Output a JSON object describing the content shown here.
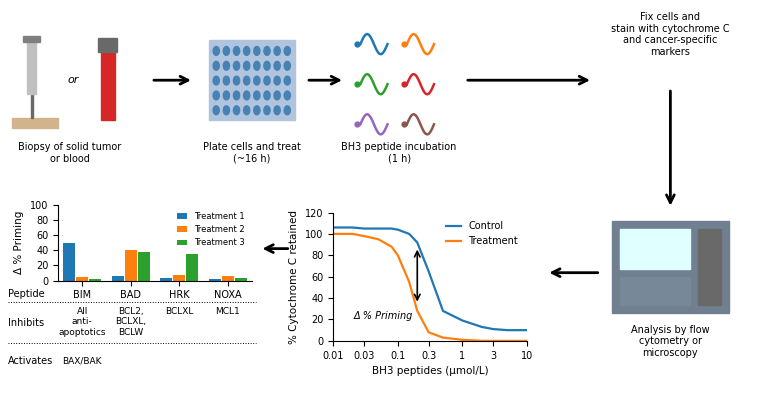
{
  "workflow": {
    "steps": [
      "Biopsy of solid tumor\nor blood",
      "Plate cells and treat\n(~16 h)",
      "BH3 peptide incubation\n(1 h)",
      "Fix cells and\nstain with cytochrome C\nand cancer-specific\nmarkers",
      "Analysis by flow\ncytometry or\nmicroscopy"
    ],
    "alternative": "or"
  },
  "chart_data": [
    {
      "type": "bar",
      "categories": [
        "BIM",
        "BAD",
        "HRK",
        "NOXA"
      ],
      "series": [
        {
          "name": "Treatment 1",
          "values": [
            50,
            6,
            4,
            2
          ]
        },
        {
          "name": "Treatment 2",
          "values": [
            5,
            40,
            7,
            6
          ]
        },
        {
          "name": "Treatment 3",
          "values": [
            2,
            38,
            35,
            3
          ]
        }
      ],
      "ylabel": "Δ % Priming",
      "ylim": [
        0,
        100
      ],
      "yticks": [
        0,
        20,
        40,
        60,
        80,
        100
      ],
      "legend": "upper right",
      "category_label": "Peptide",
      "annotation_rows": [
        {
          "label": "Inhibits",
          "values": [
            "All\nanti-\napoptotics",
            "BCL2,\nBCLXL,\nBCLW",
            "BCLXL",
            "MCL1"
          ]
        },
        {
          "label": "Activates",
          "values": [
            "BAX/BAK",
            null,
            null,
            null
          ]
        }
      ]
    },
    {
      "type": "line",
      "x": [
        0.01,
        0.02,
        0.03,
        0.05,
        0.08,
        0.1,
        0.15,
        0.2,
        0.3,
        0.5,
        1.0,
        2.0,
        3.0,
        5.0,
        10.0
      ],
      "series": [
        {
          "name": "Control",
          "values": [
            106,
            106,
            105,
            105,
            105,
            104,
            100,
            92,
            65,
            28,
            19,
            13,
            11,
            10,
            10
          ]
        },
        {
          "name": "Treatment",
          "values": [
            100,
            100,
            98,
            95,
            88,
            80,
            55,
            28,
            8,
            3,
            1,
            0,
            0,
            0,
            0
          ]
        }
      ],
      "xlabel": "BH3 peptides (μmol/L)",
      "ylabel": "% Cytochrome C retained",
      "log": "x",
      "xlim": [
        0.01,
        10
      ],
      "xticks": [
        0.01,
        0.03,
        0.1,
        0.3,
        1,
        3,
        10
      ],
      "ylim": [
        0,
        120
      ],
      "yticks": [
        0,
        20,
        40,
        60,
        80,
        100,
        120
      ],
      "legend": "upper right",
      "annotations": [
        {
          "text": "Δ % Priming",
          "x": 0.2,
          "y_top": 88,
          "y_bottom": 34
        }
      ]
    }
  ]
}
